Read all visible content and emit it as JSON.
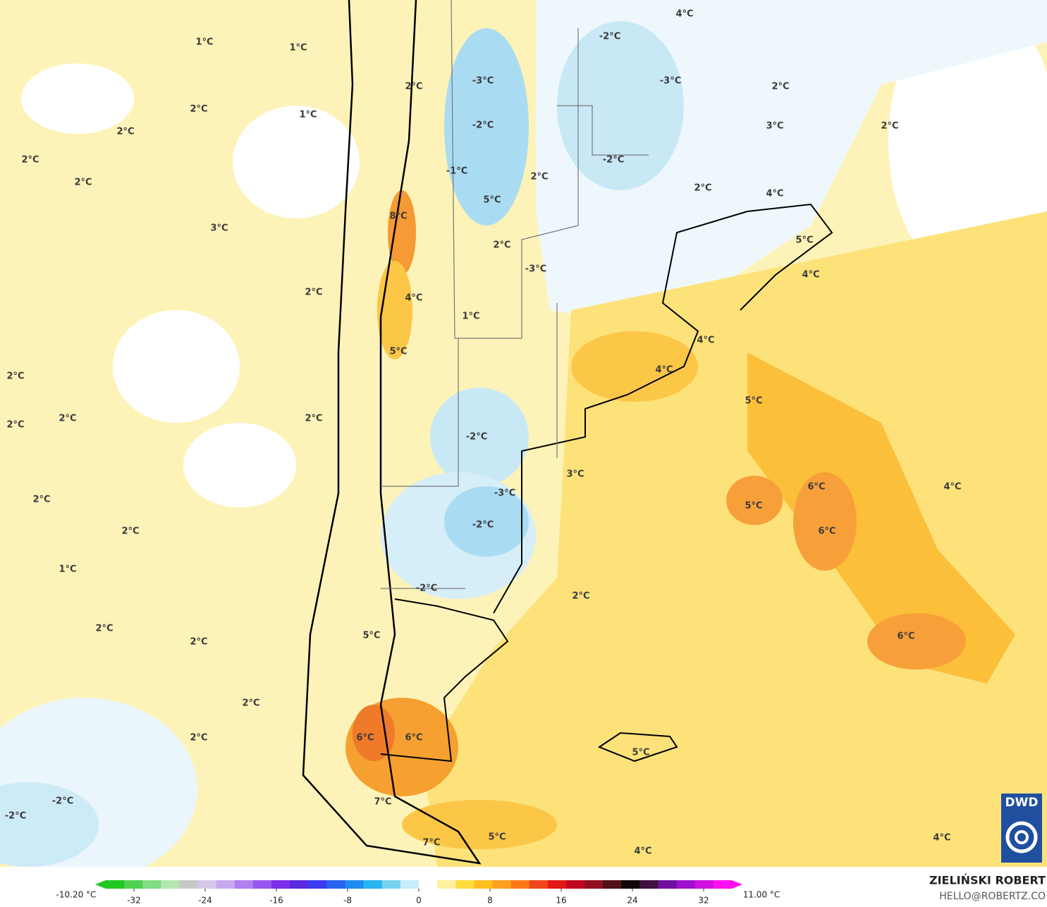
{
  "map": {
    "labels": [
      "1°C",
      "1°C",
      "2°C",
      "1°C",
      "2°C",
      "2°C",
      "2°C",
      "3°C",
      "2°C",
      "2°C",
      "2°C",
      "2°C",
      "2°C",
      "2°C",
      "2°C",
      "1°C",
      "2°C",
      "2°C",
      "2°C",
      "2°C",
      "-2°C",
      "-2°C",
      "2°C",
      "-3°C",
      "-2°C",
      "-1°C",
      "2°C",
      "5°C",
      "8°C",
      "2°C",
      "-3°C",
      "4°C",
      "1°C",
      "5°C",
      "-2°C",
      "3°C",
      "-3°C",
      "-2°C",
      "-2°C",
      "5°C",
      "2°C",
      "6°C",
      "6°C",
      "5°C",
      "7°C",
      "7°C",
      "5°C",
      "4°C",
      "4°C",
      "-2°C",
      "-3°C",
      "2°C",
      "2°C",
      "3°C",
      "-2°C",
      "2°C",
      "4°C",
      "5°C",
      "4°C",
      "4°C",
      "4°C",
      "5°C",
      "6°C",
      "5°C",
      "6°C",
      "6°C",
      "4°C",
      "4°C"
    ],
    "logo": "DWD"
  },
  "colorbar": {
    "ticks": [
      -32,
      -24,
      -16,
      -8,
      0,
      8,
      16,
      24,
      32
    ],
    "min_label": "-10.20 °C",
    "max_label": "11.00 °C"
  },
  "credits": {
    "author": "ZIELIŃSKI ROBERT",
    "contact": "HELLO@ROBERTZ.CO"
  }
}
